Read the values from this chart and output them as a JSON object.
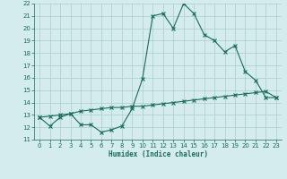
{
  "xlabel": "Humidex (Indice chaleur)",
  "x": [
    0,
    1,
    2,
    3,
    4,
    5,
    6,
    7,
    8,
    9,
    10,
    11,
    12,
    13,
    14,
    15,
    16,
    17,
    18,
    19,
    20,
    21,
    22,
    23
  ],
  "line1_y": [
    12.8,
    12.1,
    12.8,
    13.1,
    12.2,
    12.2,
    11.6,
    11.8,
    12.1,
    13.5,
    15.9,
    21.0,
    21.2,
    20.0,
    22.0,
    21.2,
    19.5,
    19.0,
    18.1,
    18.6,
    16.5,
    15.8,
    14.4,
    14.4
  ],
  "line2_y": [
    12.8,
    12.9,
    13.0,
    13.1,
    13.3,
    13.4,
    13.5,
    13.6,
    13.6,
    13.7,
    13.7,
    13.8,
    13.9,
    14.0,
    14.1,
    14.2,
    14.3,
    14.4,
    14.5,
    14.6,
    14.7,
    14.8,
    14.9,
    14.4
  ],
  "line_color": "#1a6b5a",
  "bg_color": "#d4ecec",
  "grid_color": "#aacccc",
  "ylim": [
    11,
    22
  ],
  "xlim": [
    -0.5,
    23.5
  ],
  "yticks": [
    11,
    12,
    13,
    14,
    15,
    16,
    17,
    18,
    19,
    20,
    21,
    22
  ],
  "xticks": [
    0,
    1,
    2,
    3,
    4,
    5,
    6,
    7,
    8,
    9,
    10,
    11,
    12,
    13,
    14,
    15,
    16,
    17,
    18,
    19,
    20,
    21,
    22,
    23
  ]
}
